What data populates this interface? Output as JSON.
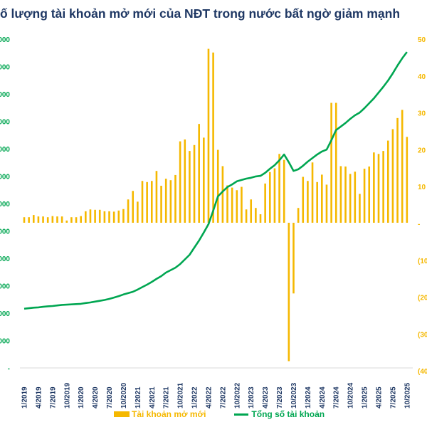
{
  "title": "ố lượng tài khoản mở mới của NĐT trong nước bất ngờ giảm mạnh",
  "colors": {
    "bars": "#F5B800",
    "line": "#00A651",
    "title": "#1F3864",
    "xlabels": "#1F3864"
  },
  "chart_data": {
    "type": "bar+line",
    "title": "ố lượng tài khoản mở mới của NĐT trong nước bất ngờ giảm mạnh",
    "legend_position": "bottom",
    "grid": false,
    "x_tick_labels": [
      "1/2019",
      "4/2019",
      "7/2019",
      "10/2019",
      "1/2020",
      "4/2020",
      "7/2020",
      "10/2020",
      "1/2021",
      "4/2021",
      "7/2021",
      "10/2021",
      "1/2022",
      "4/2022",
      "7/2022",
      "10/2022",
      "1/2023",
      "4/2023",
      "7/2023",
      "10/2023",
      "1/2024",
      "4/2024",
      "7/2024",
      "10/2024",
      "1/2025",
      "4/2025",
      "7/2025",
      "10/2025"
    ],
    "left_axis": {
      "tick_labels": [
        "000",
        "000",
        "000",
        "000",
        "000",
        "000",
        "000",
        "000",
        "000",
        "000",
        "000",
        "000",
        "-"
      ],
      "ylim": [
        0,
        12000000
      ]
    },
    "right_axis": {
      "tick_labels": [
        "50",
        "40",
        "30",
        "20",
        "10",
        "-",
        "(10",
        "(20",
        "(30",
        "(40"
      ],
      "ylim": [
        -400000,
        500000
      ]
    },
    "series": [
      {
        "name": "Tài khoản mở mới",
        "type": "bar",
        "axis": "right",
        "values": [
          15000,
          15000,
          21000,
          17000,
          17000,
          15000,
          18000,
          17000,
          17000,
          6000,
          15000,
          15000,
          18000,
          31000,
          36000,
          35000,
          35000,
          31000,
          31000,
          30000,
          33000,
          37000,
          63000,
          86000,
          57000,
          113000,
          110000,
          113000,
          140000,
          100000,
          119000,
          115000,
          129000,
          220000,
          225000,
          194000,
          210000,
          267000,
          230000,
          470000,
          460000,
          197000,
          153000,
          101000,
          95000,
          88000,
          97000,
          36000,
          63000,
          40000,
          23000,
          106000,
          137000,
          147000,
          186000,
          170000,
          -374000,
          -191000,
          40000,
          124000,
          113000,
          163000,
          110000,
          130000,
          103000,
          324000,
          324000,
          153000,
          152000,
          132000,
          138000,
          78000,
          146000,
          152000,
          190000,
          186000,
          194000,
          222000,
          253000,
          283000,
          305000,
          232000
        ]
      },
      {
        "name": "Tổng số tài khoản",
        "type": "line",
        "axis": "left",
        "values": [
          2160000,
          2180000,
          2200000,
          2210000,
          2230000,
          2250000,
          2260000,
          2280000,
          2300000,
          2310000,
          2320000,
          2330000,
          2340000,
          2370000,
          2390000,
          2420000,
          2450000,
          2480000,
          2520000,
          2570000,
          2620000,
          2680000,
          2730000,
          2780000,
          2860000,
          2950000,
          3040000,
          3140000,
          3250000,
          3350000,
          3480000,
          3570000,
          3660000,
          3790000,
          3960000,
          4130000,
          4390000,
          4650000,
          4940000,
          5250000,
          5740000,
          6260000,
          6440000,
          6600000,
          6700000,
          6810000,
          6860000,
          6910000,
          6940000,
          6990000,
          7010000,
          7120000,
          7270000,
          7400000,
          7580000,
          7790000,
          7510000,
          7190000,
          7250000,
          7380000,
          7530000,
          7660000,
          7790000,
          7900000,
          7970000,
          8310000,
          8680000,
          8810000,
          8940000,
          9090000,
          9220000,
          9320000,
          9480000,
          9660000,
          9840000,
          10050000,
          10260000,
          10490000,
          10750000,
          11040000,
          11300000,
          11530000
        ]
      }
    ]
  },
  "legend": {
    "bars_label": "Tài khoản mở mới",
    "line_label": "Tổng số tài khoản"
  }
}
